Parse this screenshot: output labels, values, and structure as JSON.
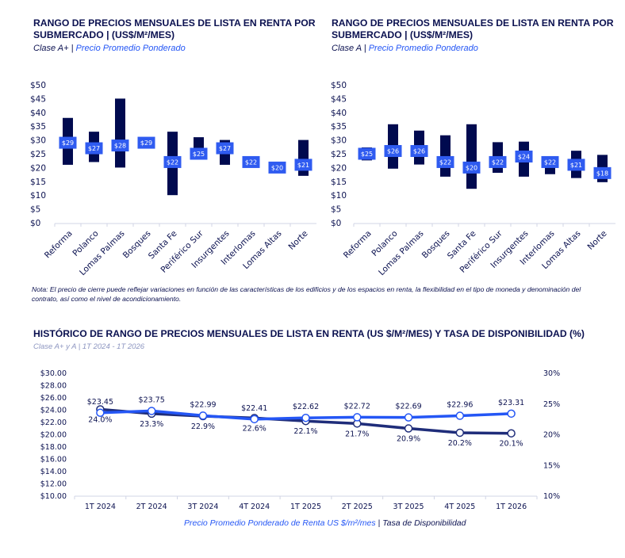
{
  "chart_data": [
    {
      "type": "range-bar",
      "title": "RANGO DE PRECIOS MENSUALES DE LISTA EN RENTA POR SUBMERCADO | (US$/M²/MES)",
      "subtitle_class": "Clase A+",
      "subtitle_metric": "Precio Promedio Ponderado",
      "categories": [
        "Reforma",
        "Polanco",
        "Lomas Palmas",
        "Bosques",
        "Santa Fe",
        "Periférico Sur",
        "Insurgentes",
        "Interlomas",
        "Lomas Altas",
        "Norte"
      ],
      "min": [
        21,
        22,
        20,
        29,
        10,
        24,
        21,
        22,
        20,
        17
      ],
      "max": [
        38,
        33,
        45,
        29,
        33,
        31,
        30,
        22,
        20,
        30
      ],
      "average": [
        29,
        27,
        28,
        29,
        22,
        25,
        27,
        22,
        20,
        21
      ],
      "ylim": [
        0,
        50
      ],
      "yticks": [
        "$0",
        "$5",
        "$10",
        "$15",
        "$20",
        "$25",
        "$30",
        "$35",
        "$40",
        "$45",
        "$50"
      ],
      "grid": false
    },
    {
      "type": "range-bar",
      "title": "RANGO DE PRECIOS MENSUALES DE LISTA EN RENTA POR SUBMERCADO | (US$/M²/MES)",
      "subtitle_class": "Clase A",
      "subtitle_metric": "Precio Promedio Ponderado",
      "categories": [
        "Reforma",
        "Polanco",
        "Lomas Palmas",
        "Bosques",
        "Santa Fe",
        "Periférico Sur",
        "Insurgentes",
        "Interlomas",
        "Lomas Altas",
        "Norte"
      ],
      "min": [
        22.6,
        19.6,
        21.1,
        16.7,
        12.3,
        18.1,
        16.7,
        17.6,
        16.2,
        14.7
      ],
      "max": [
        27.3,
        35.7,
        33.4,
        31.7,
        35.7,
        29.2,
        29.4,
        24,
        26.1,
        24.6
      ],
      "average": [
        25,
        26,
        26,
        22,
        20,
        22,
        24,
        22,
        21,
        18
      ],
      "ylim": [
        0,
        50
      ],
      "yticks": [
        "$0",
        "$5",
        "$10",
        "$15",
        "$20",
        "$25",
        "$30",
        "$35",
        "$40",
        "$45",
        "$50"
      ],
      "grid": false
    },
    {
      "type": "line",
      "title": "HISTÓRICO DE RANGO DE PRECIOS MENSUALES DE LISTA EN RENTA (US $/M²/MES) Y TASA DE DISPONIBILIDAD (%)",
      "subtitle": "Clase A+ y A | 1T 2024 - 1T 2026",
      "categories": [
        "1T 2024",
        "2T 2024",
        "3T 2024",
        "4T 2024",
        "1T 2025",
        "2T 2025",
        "3T 2025",
        "4T 2025",
        "1T 2026"
      ],
      "series": [
        {
          "name": "Precio Promedio Ponderado de Renta US $/m²/mes",
          "axis": "left",
          "values": [
            23.45,
            23.75,
            22.99,
            22.41,
            22.62,
            22.72,
            22.69,
            22.96,
            23.31
          ],
          "labels": [
            "$23.45",
            "$23.75",
            "$22.99",
            "$22.41",
            "$22.62",
            "$22.72",
            "$22.69",
            "$22.96",
            "$23.31"
          ],
          "color": "#2456f5"
        },
        {
          "name": "Tasa de Disponibilidad",
          "axis": "right",
          "values": [
            24.0,
            23.3,
            22.9,
            22.6,
            22.1,
            21.7,
            20.9,
            20.2,
            20.1
          ],
          "labels": [
            "24.0%",
            "23.3%",
            "22.9%",
            "22.6%",
            "22.1%",
            "21.7%",
            "20.9%",
            "20.2%",
            "20.1%"
          ],
          "color": "#1f2d7a"
        }
      ],
      "ylim_left": [
        10,
        30
      ],
      "yticks_left": [
        "$10.00",
        "$12.00",
        "$14.00",
        "$16.00",
        "$18.00",
        "$20.00",
        "$22.00",
        "$24.00",
        "$26.00",
        "$28.00",
        "$30.00"
      ],
      "ylim_right": [
        10,
        30
      ],
      "yticks_right": [
        "10%",
        "15%",
        "20%",
        "25%",
        "30%"
      ],
      "legend": "bottom",
      "legend_separator": "|",
      "grid": false
    }
  ],
  "note": "Nota: El precio de cierre puede reflejar variaciones en función de las características de los edificios y de los espacios en renta, la flexibilidad en el tipo de moneda y denominación del contrato, así como el nivel de acondicionamiento.",
  "separator": "|",
  "colors": {
    "range_bar": "#000a4f",
    "average_label": "#2f5bf0",
    "title": "#0b1150"
  }
}
